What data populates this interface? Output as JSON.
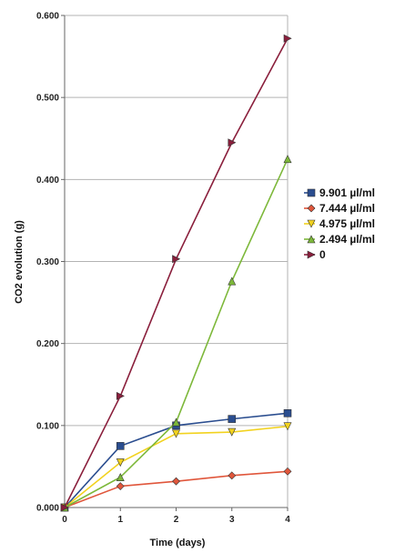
{
  "chart_data": {
    "type": "line",
    "title": "",
    "xlabel": "Time (days)",
    "ylabel": "CO2 evolution (g)",
    "x": [
      0,
      1,
      2,
      3,
      4
    ],
    "x_ticks": [
      "0",
      "1",
      "2",
      "3",
      "4"
    ],
    "xlim": [
      0,
      4
    ],
    "ylim": [
      0,
      0.6
    ],
    "y_ticks": [
      "0.000",
      "0.100",
      "0.200",
      "0.300",
      "0.400",
      "0.500",
      "0.600"
    ],
    "grid": "horizontal",
    "legend_position": "right",
    "series": [
      {
        "name": "9.901 µl/ml",
        "marker": "square",
        "color": "#2a4d8f",
        "values": [
          0.0,
          0.075,
          0.1,
          0.108,
          0.115
        ]
      },
      {
        "name": "7.444 µl/ml",
        "marker": "diamond",
        "color": "#e0563b",
        "values": [
          0.0,
          0.026,
          0.032,
          0.039,
          0.044
        ]
      },
      {
        "name": "4.975 µl/ml",
        "marker": "triangle-down",
        "color": "#f2d21e",
        "values": [
          0.0,
          0.055,
          0.09,
          0.092,
          0.099
        ]
      },
      {
        "name": "2.494 µl/ml",
        "marker": "triangle-up",
        "color": "#7db83a",
        "values": [
          0.0,
          0.037,
          0.104,
          0.276,
          0.425
        ]
      },
      {
        "name": "0",
        "marker": "triangle-right",
        "color": "#8a1f3c",
        "values": [
          0.0,
          0.136,
          0.303,
          0.445,
          0.572
        ]
      }
    ]
  }
}
